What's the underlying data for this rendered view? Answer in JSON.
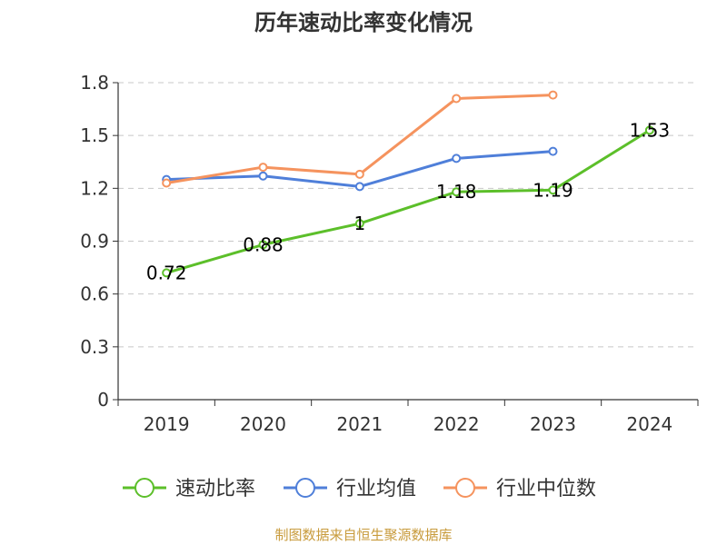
{
  "chart_data": {
    "type": "line",
    "title": "历年速动比率变化情况",
    "categories": [
      "2019",
      "2020",
      "2021",
      "2022",
      "2023",
      "2024"
    ],
    "y_ticks": [
      "0",
      "0.3",
      "0.6",
      "0.9",
      "1.2",
      "1.5",
      "1.8"
    ],
    "ylim": [
      0,
      1.8
    ],
    "grid": true,
    "legend_position": "bottom",
    "series": [
      {
        "name": "速动比率",
        "color": "#5cbf2a",
        "values": [
          0.72,
          0.88,
          1.0,
          1.18,
          1.19,
          1.53
        ],
        "labels": [
          "0.72",
          "0.88",
          "1",
          "1.18",
          "1.19",
          "1.53"
        ]
      },
      {
        "name": "行业均值",
        "color": "#4f7fd9",
        "values": [
          1.25,
          1.27,
          1.21,
          1.37,
          1.41,
          null
        ]
      },
      {
        "name": "行业中位数",
        "color": "#f5935e",
        "values": [
          1.23,
          1.32,
          1.28,
          1.71,
          1.73,
          null
        ]
      }
    ],
    "source": "制图数据来自恒生聚源数据库"
  }
}
